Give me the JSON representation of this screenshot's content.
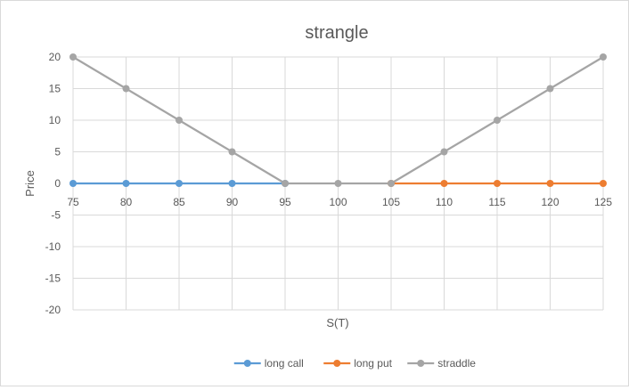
{
  "chart_data": {
    "type": "line",
    "title": "strangle",
    "xlabel": "S(T)",
    "ylabel": "Price",
    "x": [
      75,
      80,
      85,
      90,
      95,
      100,
      105,
      110,
      115,
      120,
      125
    ],
    "ylim": [
      -20,
      20
    ],
    "yticks": [
      20,
      15,
      10,
      5,
      0,
      -5,
      -10,
      -15,
      -20
    ],
    "grid": true,
    "legend_position": "bottom",
    "series": [
      {
        "name": "long call",
        "color": "#5b9bd5",
        "points": [
          [
            75,
            0
          ],
          [
            80,
            0
          ],
          [
            85,
            0
          ],
          [
            90,
            0
          ],
          [
            95,
            0
          ]
        ]
      },
      {
        "name": "long put",
        "color": "#ed7d31",
        "points": [
          [
            105,
            0
          ],
          [
            110,
            0
          ],
          [
            115,
            0
          ],
          [
            120,
            0
          ],
          [
            125,
            0
          ]
        ]
      },
      {
        "name": "straddle",
        "color": "#a5a5a5",
        "points": [
          [
            75,
            20
          ],
          [
            80,
            15
          ],
          [
            85,
            10
          ],
          [
            90,
            5
          ],
          [
            95,
            0
          ],
          [
            100,
            0
          ],
          [
            105,
            0
          ],
          [
            110,
            5
          ],
          [
            115,
            10
          ],
          [
            120,
            15
          ],
          [
            125,
            20
          ]
        ]
      }
    ]
  }
}
